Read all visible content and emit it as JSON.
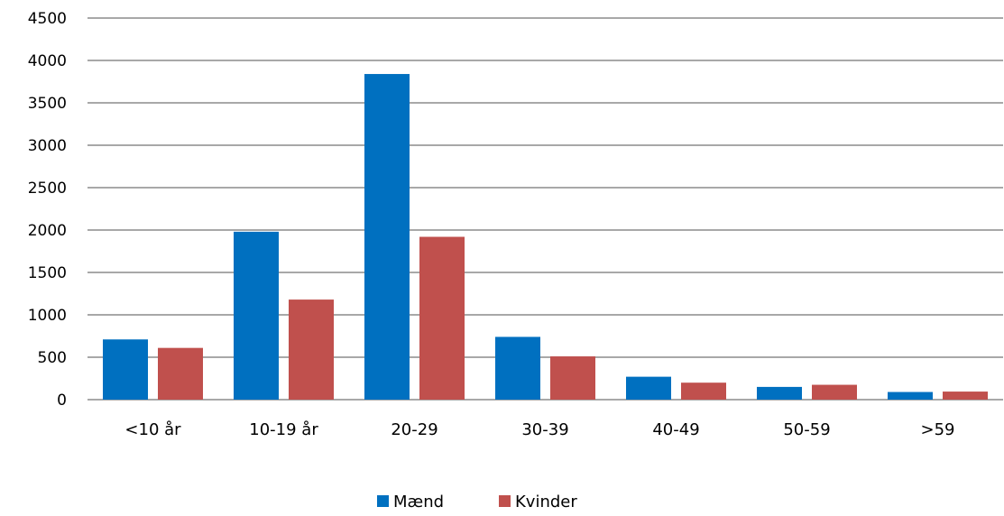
{
  "chart_data": {
    "type": "bar",
    "categories": [
      "<10 år",
      "10-19 år",
      "20-29",
      "30-39",
      "40-49",
      "50-59",
      ">59"
    ],
    "series": [
      {
        "name": "Mænd",
        "color": "#0070C0",
        "values": [
          710,
          1980,
          3840,
          740,
          270,
          150,
          90
        ]
      },
      {
        "name": "Kvinder",
        "color": "#C0504D",
        "values": [
          610,
          1180,
          1920,
          510,
          200,
          175,
          95
        ]
      }
    ],
    "ylim": [
      0,
      4500
    ],
    "yticks": [
      0,
      500,
      1000,
      1500,
      2000,
      2500,
      3000,
      3500,
      4000,
      4500
    ],
    "grid": true,
    "legend_position": "bottom",
    "title": "",
    "xlabel": "",
    "ylabel": ""
  }
}
